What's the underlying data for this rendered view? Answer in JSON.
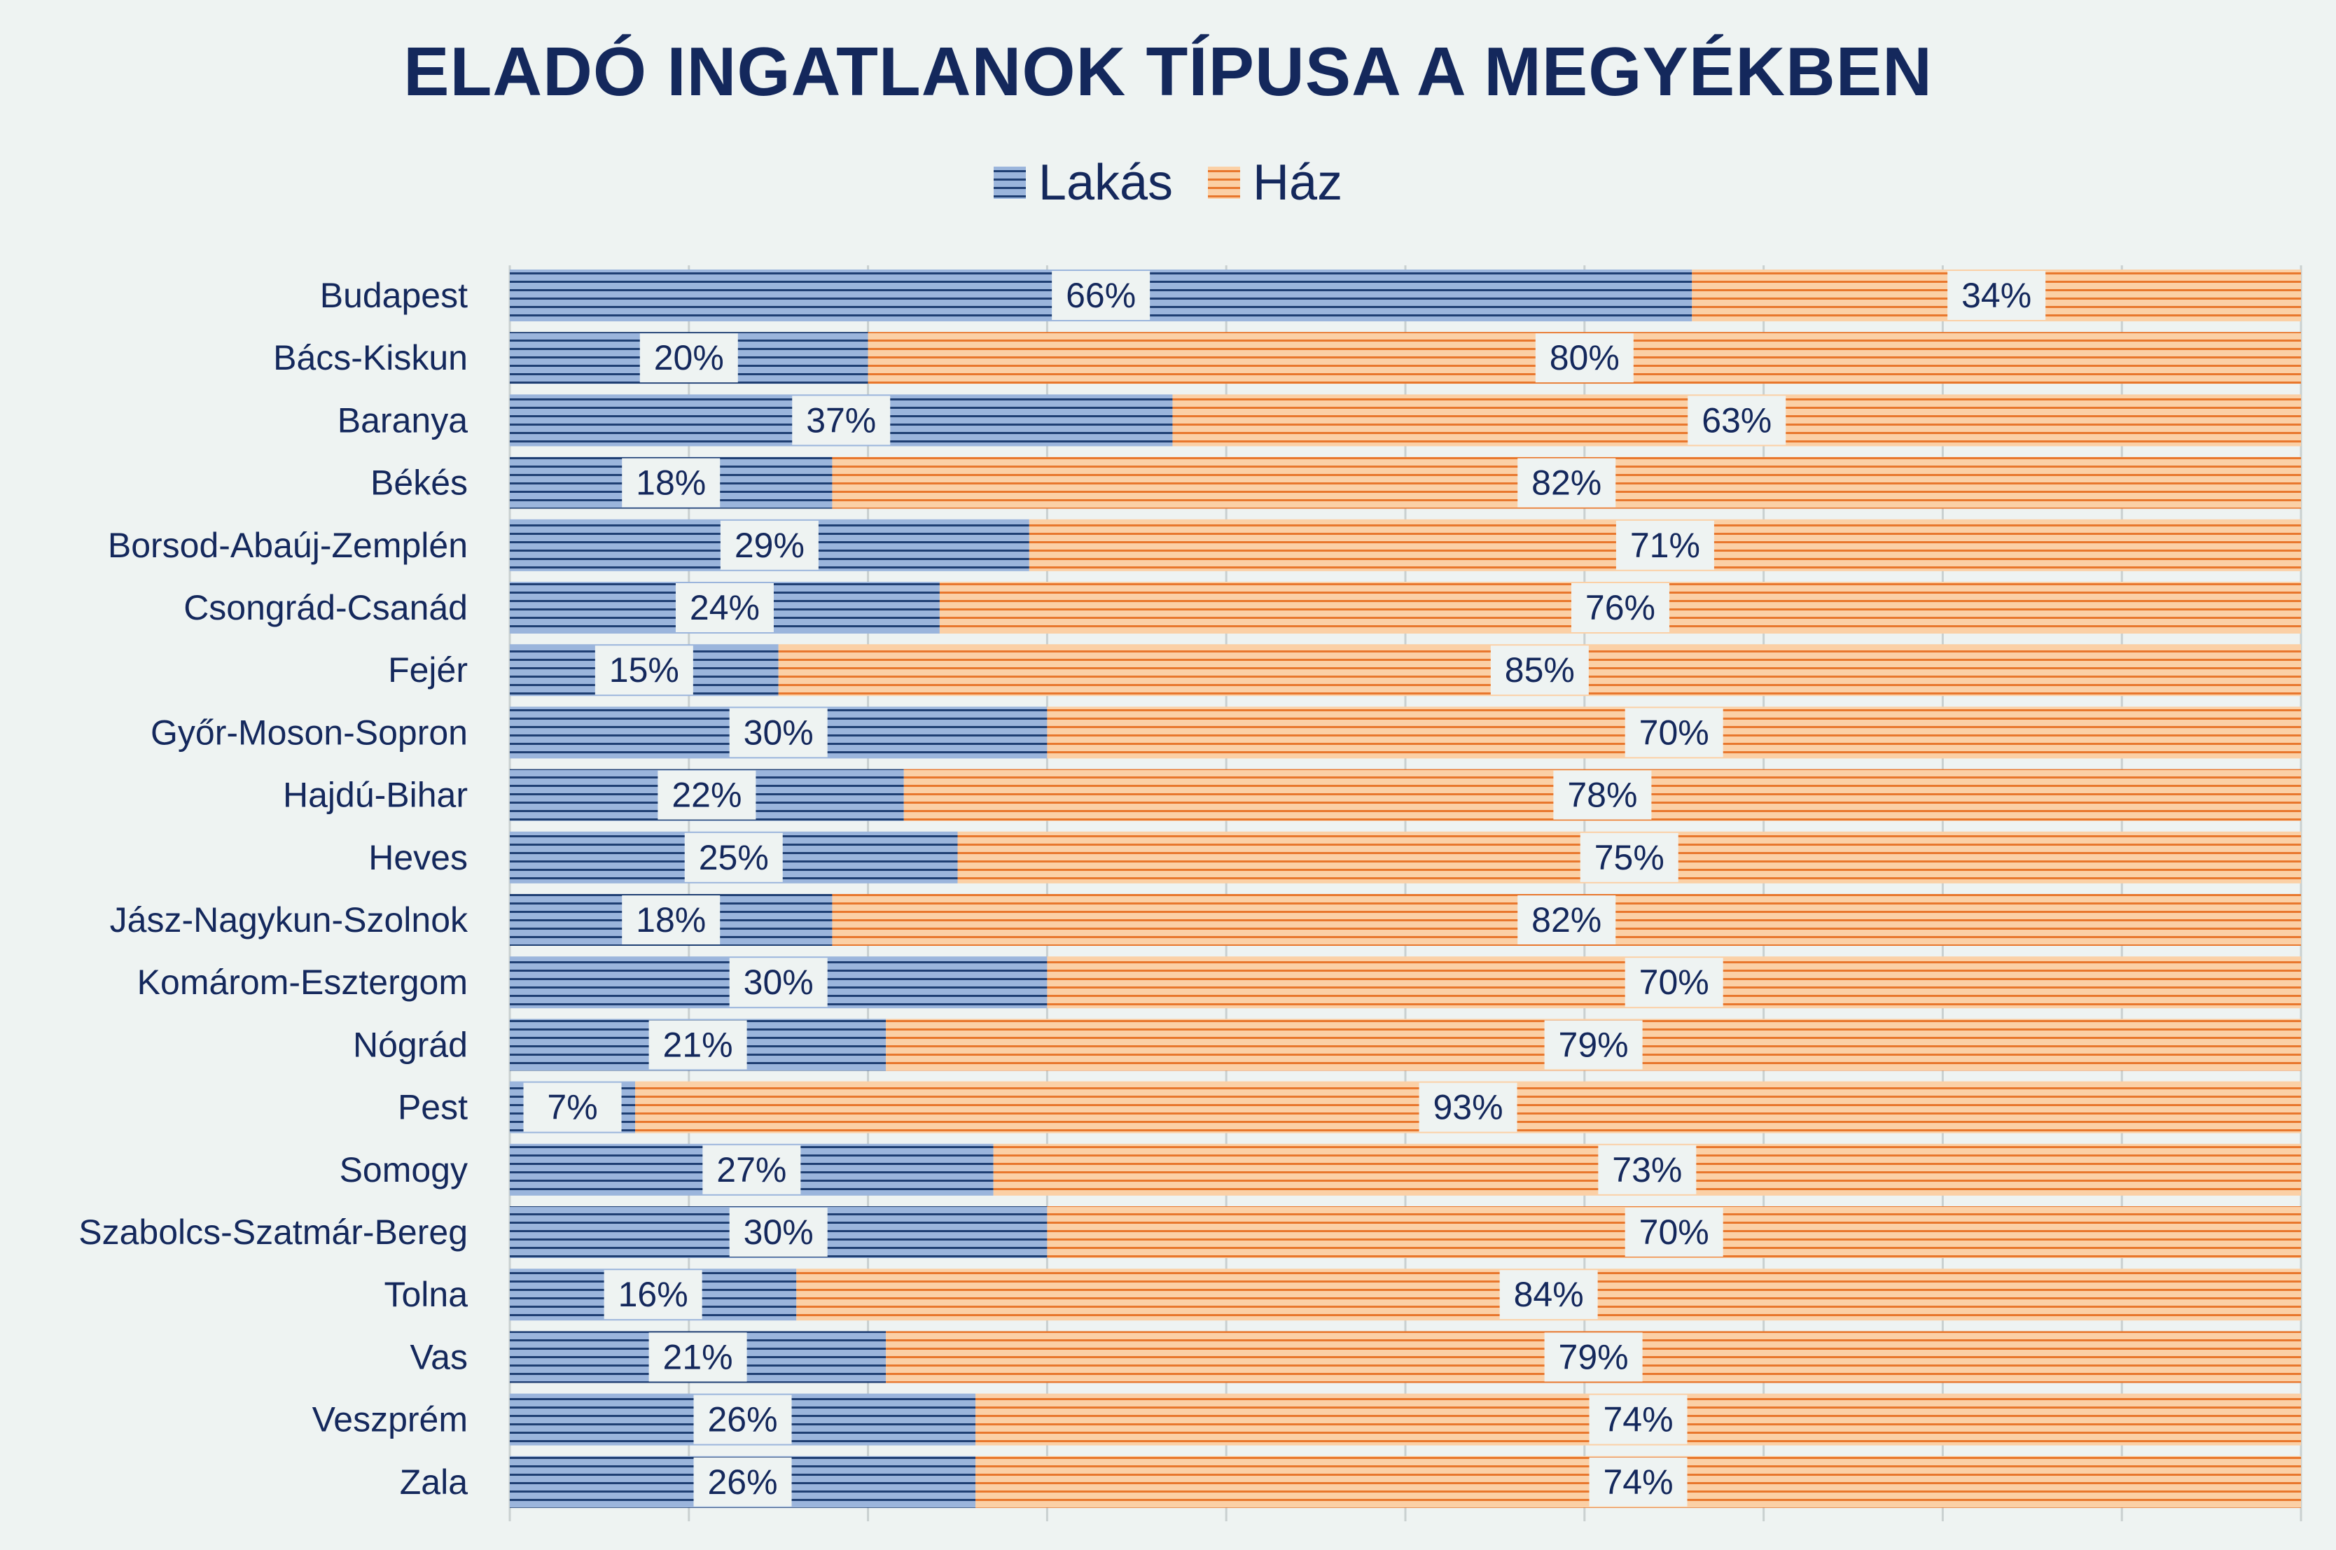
{
  "colors": {
    "lakas_fill": "#9bb5dc",
    "lakas_stripe": "#1f3f73",
    "haz_fill": "#fbd0a6",
    "haz_stripe": "#e8772d",
    "text": "#14285c",
    "grid": "#c9d0d0",
    "background": "#eef3f2"
  },
  "chart_data": {
    "type": "bar",
    "orientation": "horizontal",
    "stacked": "100%",
    "title": "ELADÓ INGATLANOK TÍPUSA A MEGYÉKBEN",
    "legend_position": "top",
    "xlim": [
      0,
      100
    ],
    "grid": true,
    "categories": [
      "Budapest",
      "Bács-Kiskun",
      "Baranya",
      "Békés",
      "Borsod-Abaúj-Zemplén",
      "Csongrád-Csanád",
      "Fejér",
      "Győr-Moson-Sopron",
      "Hajdú-Bihar",
      "Heves",
      "Jász-Nagykun-Szolnok",
      "Komárom-Esztergom",
      "Nógrád",
      "Pest",
      "Somogy",
      "Szabolcs-Szatmár-Bereg",
      "Tolna",
      "Vas",
      "Veszprém",
      "Zala"
    ],
    "series": [
      {
        "name": "Lakás",
        "values": [
          66,
          20,
          37,
          18,
          29,
          24,
          15,
          30,
          22,
          25,
          18,
          30,
          21,
          7,
          27,
          30,
          16,
          21,
          26,
          26
        ]
      },
      {
        "name": "Ház",
        "values": [
          34,
          80,
          63,
          82,
          71,
          76,
          85,
          70,
          78,
          75,
          82,
          70,
          79,
          93,
          73,
          70,
          84,
          79,
          74,
          74
        ]
      }
    ],
    "data_labels": {
      "Lakás": [
        "66%",
        "20%",
        "37%",
        "18%",
        "29%",
        "24%",
        "15%",
        "30%",
        "22%",
        "25%",
        "18%",
        "30%",
        "21%",
        "7%",
        "27%",
        "30%",
        "16%",
        "21%",
        "26%",
        "26%"
      ],
      "Ház": [
        "34%",
        "80%",
        "63%",
        "82%",
        "71%",
        "76%",
        "85%",
        "70%",
        "78%",
        "75%",
        "82%",
        "70%",
        "79%",
        "93%",
        "73%",
        "70%",
        "84%",
        "79%",
        "74%",
        "74%"
      ]
    }
  }
}
